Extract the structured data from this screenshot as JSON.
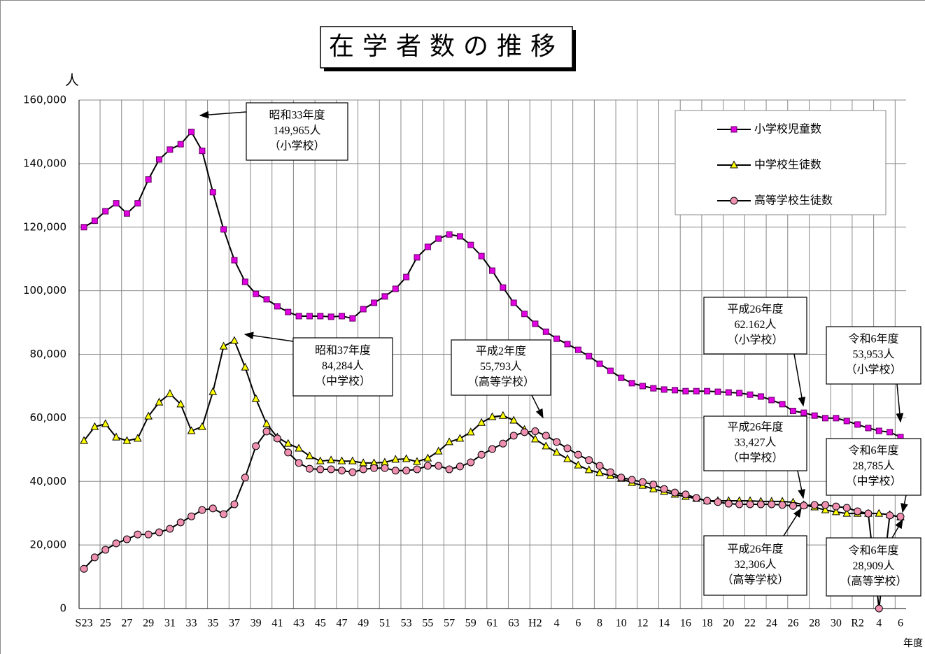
{
  "chart_data": {
    "type": "line",
    "title": "在学者数の推移",
    "y_label": "人",
    "x_label": "年度",
    "categories": [
      "S23",
      null,
      "25",
      null,
      "27",
      null,
      "29",
      null,
      "31",
      null,
      "33",
      null,
      "35",
      null,
      "37",
      null,
      "39",
      null,
      "41",
      null,
      "43",
      null,
      "45",
      null,
      "47",
      null,
      "49",
      null,
      "51",
      null,
      "53",
      null,
      "55",
      null,
      "57",
      null,
      "59",
      null,
      "61",
      null,
      "63",
      null,
      "H2",
      null,
      "4",
      null,
      "6",
      null,
      "8",
      null,
      "10",
      null,
      "12",
      null,
      "14",
      null,
      "16",
      null,
      "18",
      null,
      "20",
      null,
      "22",
      null,
      "24",
      null,
      "26",
      null,
      "28",
      null,
      "30",
      null,
      "R2",
      null,
      "4",
      null,
      "6"
    ],
    "series": [
      {
        "name": "小学校児童数",
        "color": "#e000e0",
        "marker": "square",
        "values": [
          120000,
          122000,
          125000,
          127500,
          124300,
          127500,
          135000,
          141300,
          144400,
          146100,
          149965,
          144000,
          131000,
          119300,
          109600,
          102800,
          99000,
          97300,
          95100,
          93300,
          92000,
          92000,
          92000,
          91800,
          92000,
          91300,
          94200,
          96200,
          98200,
          100600,
          104300,
          110500,
          113800,
          116400,
          117700,
          117100,
          114400,
          110900,
          106300,
          101000,
          96200,
          92700,
          89600,
          87100,
          84900,
          83200,
          81400,
          79400,
          77000,
          74800,
          72600,
          70900,
          70000,
          69300,
          68900,
          68700,
          68400,
          68400,
          68400,
          68200,
          68000,
          67800,
          67300,
          66700,
          65600,
          64300,
          62162,
          61600,
          60700,
          59900,
          59900,
          59000,
          57900,
          56800,
          55900,
          55500,
          53953
        ]
      },
      {
        "name": "中学校生徒数",
        "color": "#ffff00",
        "marker": "triangle",
        "values": [
          52800,
          57200,
          58100,
          53900,
          52800,
          53500,
          60500,
          64900,
          67600,
          64300,
          55900,
          57200,
          68200,
          82500,
          84284,
          75900,
          66000,
          58100,
          53900,
          51900,
          50400,
          48000,
          46400,
          46700,
          46400,
          46400,
          45800,
          45800,
          46000,
          46900,
          47100,
          46200,
          47300,
          49500,
          52400,
          53500,
          55500,
          58500,
          60300,
          60700,
          59200,
          56300,
          53300,
          51100,
          49100,
          47100,
          45100,
          43600,
          42700,
          41800,
          40900,
          39600,
          38700,
          37600,
          36800,
          35900,
          35200,
          34600,
          33900,
          33900,
          33900,
          33900,
          33900,
          33700,
          33700,
          33700,
          33427,
          32600,
          31900,
          31000,
          30400,
          29900,
          29900,
          29900,
          29900,
          29500,
          28785
        ]
      },
      {
        "name": "高等学校生徒数",
        "color": "#f090b0",
        "marker": "circle",
        "values": [
          12500,
          16100,
          18500,
          20500,
          21800,
          23300,
          23300,
          24000,
          25100,
          27100,
          29000,
          31000,
          31500,
          29700,
          32800,
          41200,
          51100,
          55700,
          53500,
          49100,
          45800,
          44000,
          43800,
          43800,
          43400,
          42900,
          43800,
          44200,
          44200,
          43400,
          43400,
          43800,
          44900,
          44900,
          43800,
          44700,
          46000,
          48400,
          50200,
          51900,
          54400,
          55500,
          55793,
          54400,
          52400,
          50400,
          48400,
          46700,
          44900,
          42900,
          41200,
          40500,
          39800,
          39000,
          37600,
          36500,
          35900,
          34800,
          33900,
          33500,
          33000,
          32800,
          32800,
          32800,
          32800,
          32600,
          32306,
          32400,
          32600,
          32600,
          32100,
          31700,
          30600,
          29900,
          0,
          29300,
          28909
        ]
      }
    ],
    "ylim": [
      0,
      160000
    ],
    "yticks": [
      0,
      {
        "value": 20000,
        "label": "20,000"
      },
      {
        "value": 40000,
        "label": "40,000"
      },
      {
        "value": 60000,
        "label": "60,000"
      },
      {
        "value": 80000,
        "label": "80,000"
      },
      {
        "value": 100000,
        "label": "100,000"
      },
      {
        "value": 120000,
        "label": "120,000"
      },
      {
        "value": 140000,
        "label": "140,000"
      },
      {
        "value": 160000,
        "label": "160,000"
      }
    ],
    "grid": true,
    "legend": "upper right",
    "annotations": [
      {
        "lines": [
          "昭和33年度",
          "149,965人",
          "（小学校）"
        ]
      },
      {
        "lines": [
          "昭和37年度",
          "84,284人",
          "（中学校）"
        ]
      },
      {
        "lines": [
          "平成2年度",
          "55,793人",
          "（高等学校）"
        ]
      },
      {
        "lines": [
          "平成26年度",
          "62.162人",
          "（小学校）"
        ]
      },
      {
        "lines": [
          "令和6年度",
          "53,953人",
          "（小学校）"
        ]
      },
      {
        "lines": [
          "平成26年度",
          "33,427人",
          "（中学校）"
        ]
      },
      {
        "lines": [
          "令和6年度",
          "28,785人",
          "（中学校）"
        ]
      },
      {
        "lines": [
          "平成26年度",
          "32,306人",
          "（高等学校）"
        ]
      },
      {
        "lines": [
          "令和6年度",
          "28,909人",
          "（高等学校）"
        ]
      }
    ]
  }
}
